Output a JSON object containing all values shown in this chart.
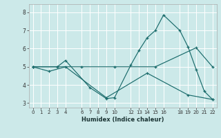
{
  "title": "",
  "xlabel": "Humidex (Indice chaleur)",
  "bg_color": "#cce9e9",
  "grid_color": "#ffffff",
  "line_color": "#1a6b6b",
  "xlim": [
    -0.5,
    22.5
  ],
  "ylim": [
    2.75,
    8.45
  ],
  "xticks": [
    0,
    1,
    2,
    3,
    4,
    6,
    7,
    8,
    9,
    10,
    12,
    13,
    14,
    15,
    16,
    18,
    19,
    20,
    21,
    22
  ],
  "yticks": [
    3,
    4,
    5,
    6,
    7,
    8
  ],
  "series": [
    {
      "x": [
        0,
        3,
        4,
        7,
        9,
        10,
        12,
        13,
        14,
        15,
        16,
        18,
        19,
        20,
        21,
        22
      ],
      "y": [
        5.0,
        5.0,
        5.35,
        3.85,
        3.25,
        3.3,
        5.1,
        5.9,
        6.6,
        7.0,
        7.85,
        7.0,
        6.1,
        4.85,
        3.65,
        3.2
      ]
    },
    {
      "x": [
        0,
        3,
        6,
        10,
        15,
        20,
        22
      ],
      "y": [
        5.0,
        5.0,
        5.0,
        5.0,
        5.0,
        6.05,
        5.0
      ]
    },
    {
      "x": [
        0,
        2,
        4,
        9,
        14,
        19,
        22
      ],
      "y": [
        5.0,
        4.75,
        5.0,
        3.3,
        4.65,
        3.45,
        3.2
      ]
    }
  ]
}
